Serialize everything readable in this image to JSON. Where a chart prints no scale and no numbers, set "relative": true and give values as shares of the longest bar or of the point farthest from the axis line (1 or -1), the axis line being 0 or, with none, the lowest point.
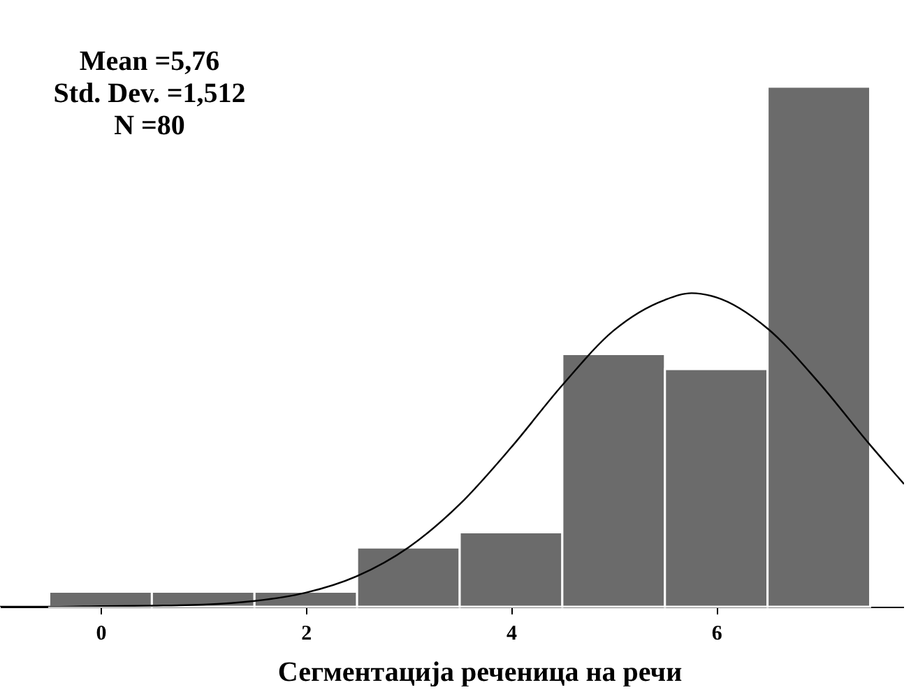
{
  "chart_data": {
    "type": "histogram",
    "relative": true,
    "xlabel": "Сегментација реченица на речи",
    "bins": [
      -0.5,
      0.5,
      1.5,
      2.5,
      3.5,
      4.5,
      5.5,
      6.5,
      7.5
    ],
    "values": [
      0.029,
      0.029,
      0.029,
      0.114,
      0.143,
      0.486,
      0.457,
      1
    ],
    "color": "#6b6b6b",
    "series": [
      {
        "type": "line",
        "color": "#000000",
        "x": [
          -0.98,
          -0.5,
          0,
          0.5,
          1,
          1.5,
          2,
          2.5,
          3,
          3.5,
          4,
          4.5,
          5,
          5.5,
          5.76,
          6,
          6.5,
          7,
          7.5,
          7.83
        ],
        "values": [
          0,
          0,
          0.001,
          0.002,
          0.004,
          0.011,
          0.027,
          0.059,
          0.114,
          0.197,
          0.306,
          0.426,
          0.531,
          0.59,
          0.603,
          0.595,
          0.535,
          0.431,
          0.311,
          0.236
        ]
      }
    ],
    "xlim": [
      -0.98,
      7.83
    ],
    "xticks": [
      0,
      2,
      4,
      6
    ],
    "annotations": [
      "Mean =5,76",
      "Std. Dev. =1,512",
      "N =80"
    ],
    "grid": false,
    "legend": false
  }
}
